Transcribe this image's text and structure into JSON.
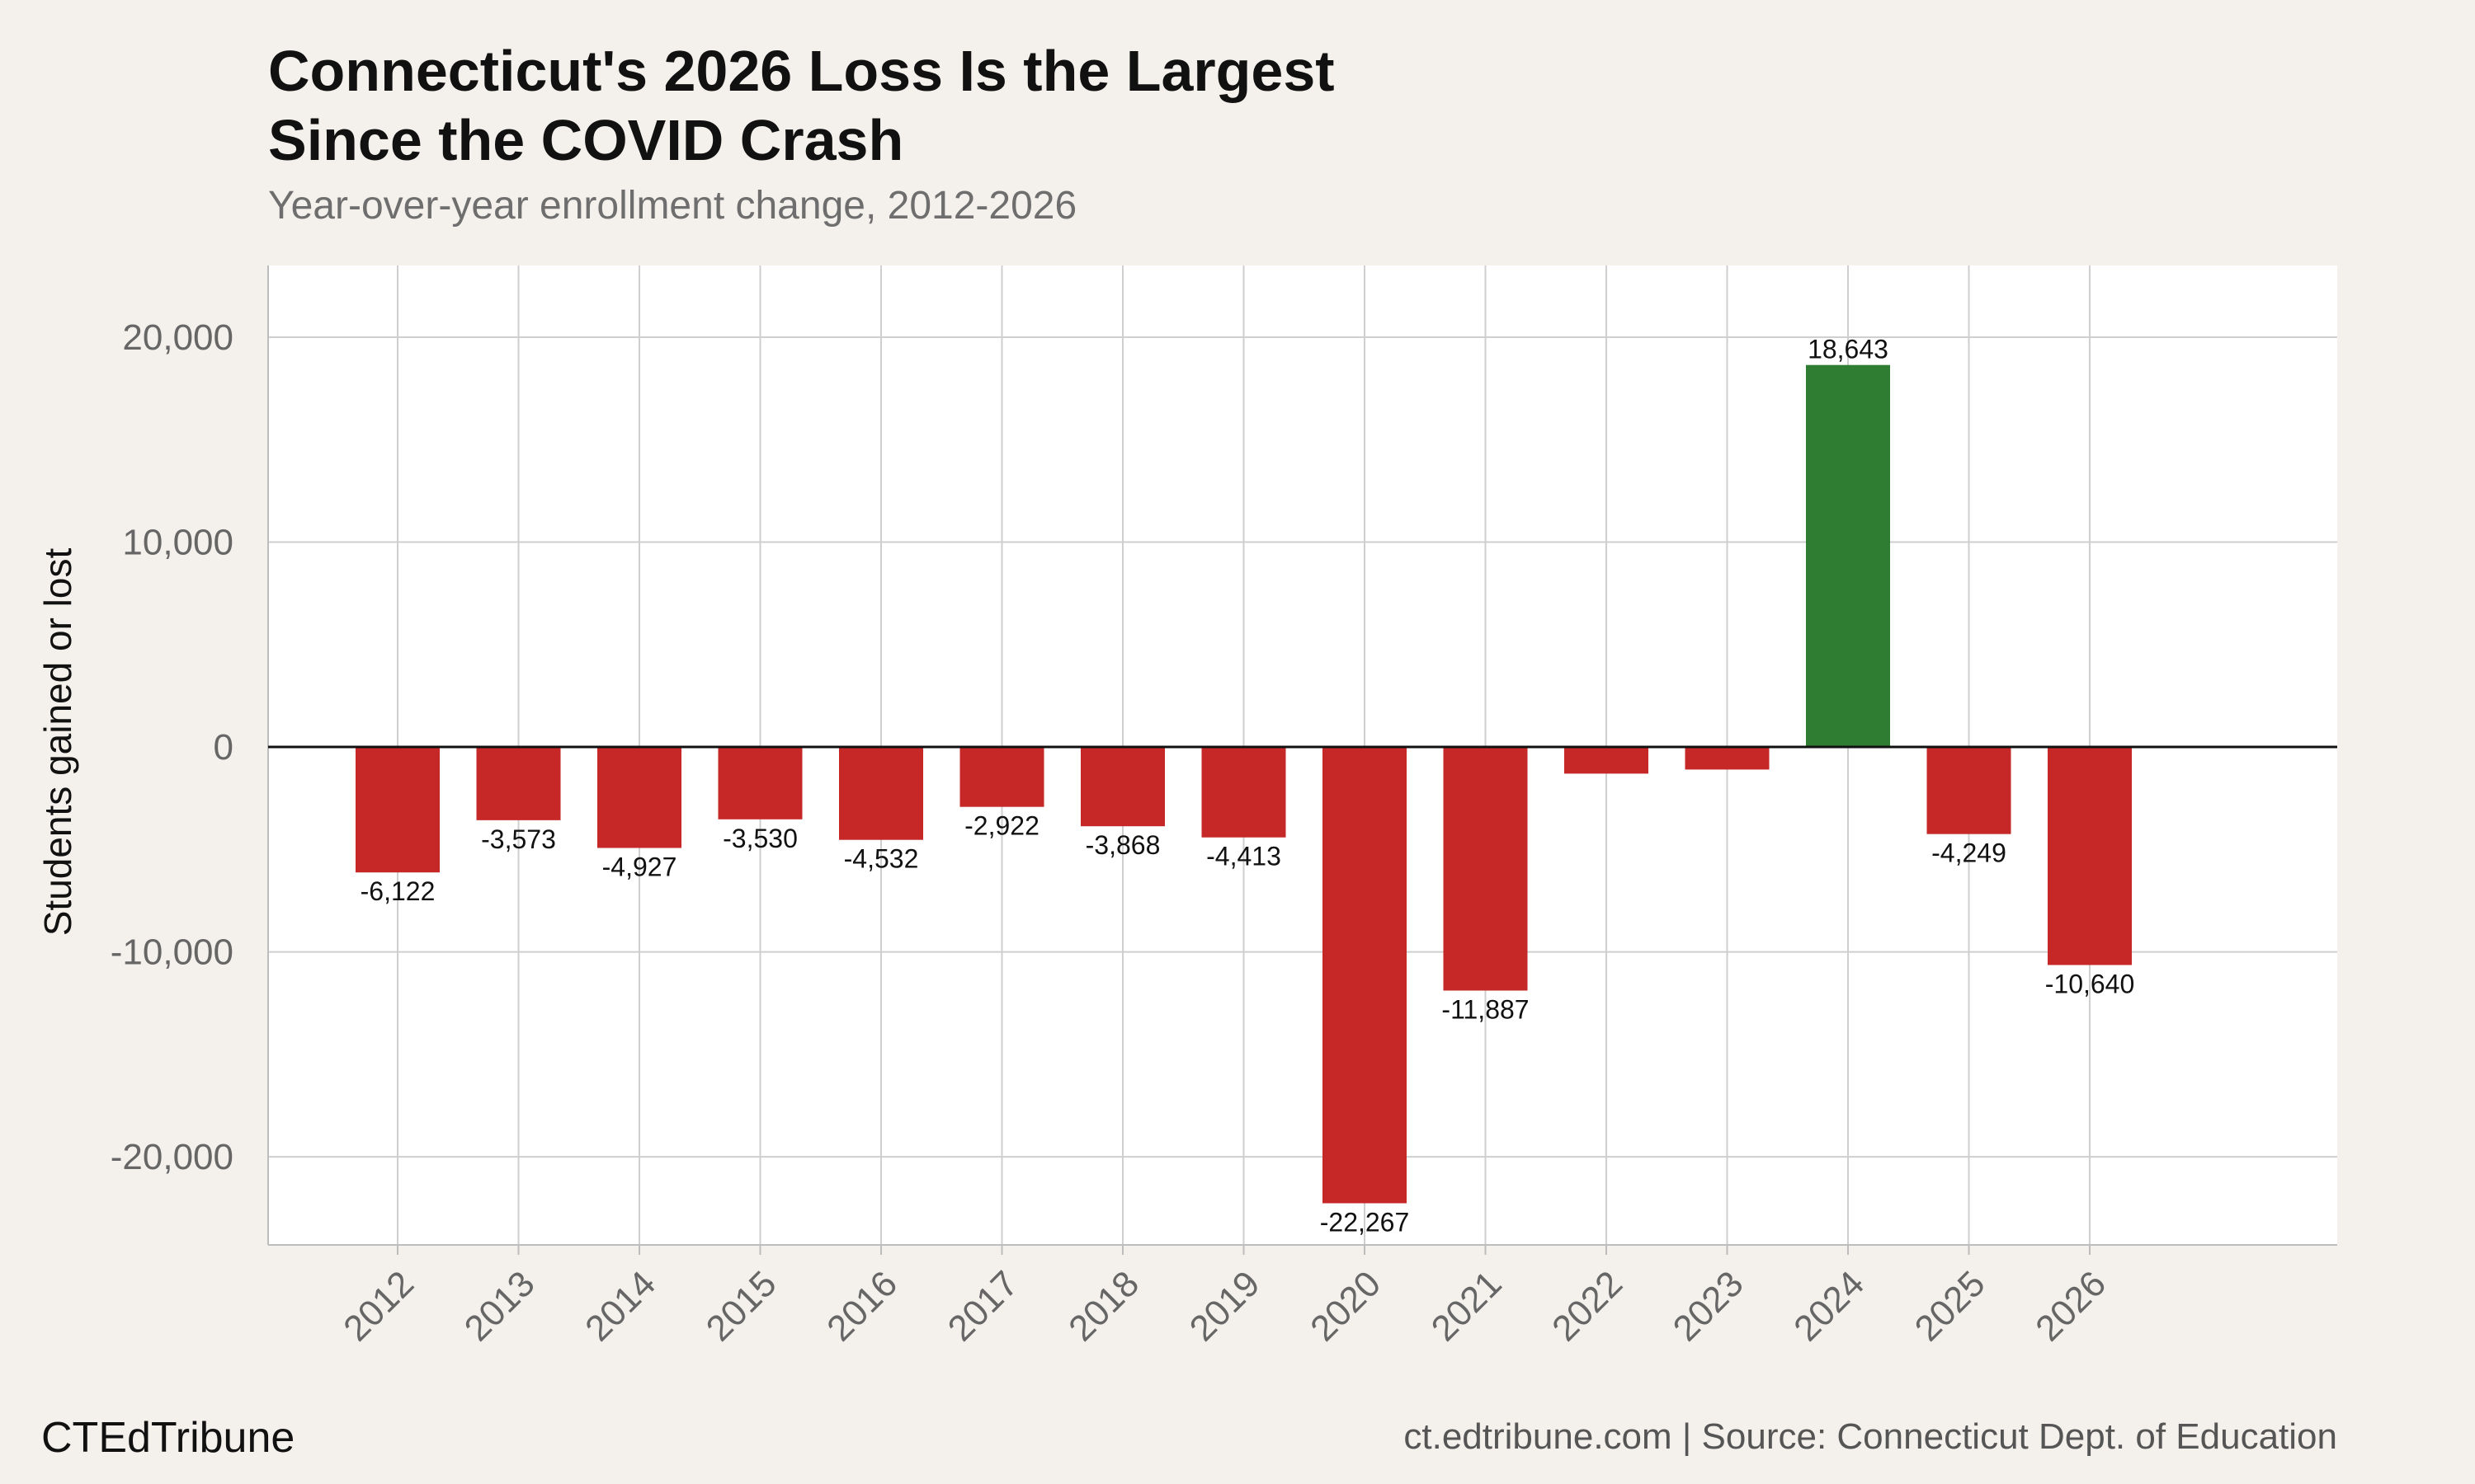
{
  "brand": "CTEdTribune",
  "source": "ct.edtribune.com | Source: Connecticut Dept. of Education",
  "colors": {
    "gain": "#2e7d32",
    "loss": "#c62828",
    "background": "#f4f1ec",
    "panel": "#ffffff"
  },
  "chart_data": {
    "type": "bar",
    "title_lines": [
      "Connecticut's 2026 Loss Is the Largest",
      "Since the COVID Crash"
    ],
    "subtitle": "Year-over-year enrollment change, 2012-2026",
    "xlabel": "",
    "ylabel": "Students gained or lost",
    "categories": [
      "2012",
      "2013",
      "2014",
      "2015",
      "2016",
      "2017",
      "2018",
      "2019",
      "2020",
      "2021",
      "2022",
      "2023",
      "2024",
      "2025",
      "2026"
    ],
    "values": [
      -6122,
      -3573,
      -4927,
      -3530,
      -4532,
      -2922,
      -3868,
      -4413,
      -22267,
      -11887,
      -1300,
      -1100,
      18643,
      -4249,
      -10640
    ],
    "data_labels": [
      "-6,122",
      "-3,573",
      "-4,927",
      "-3,530",
      "-4,532",
      "-2,922",
      "-3,868",
      "-4,413",
      "-22,267",
      "-11,887",
      "",
      "",
      "18,643",
      "-4,249",
      "-10,640"
    ],
    "yticks": [
      -20000,
      -10000,
      0,
      10000,
      20000
    ],
    "ytick_labels": [
      "-20,000",
      "-10,000",
      "0",
      "10,000",
      "20,000"
    ],
    "ylim": [
      -24300,
      23500
    ],
    "grid": true
  }
}
